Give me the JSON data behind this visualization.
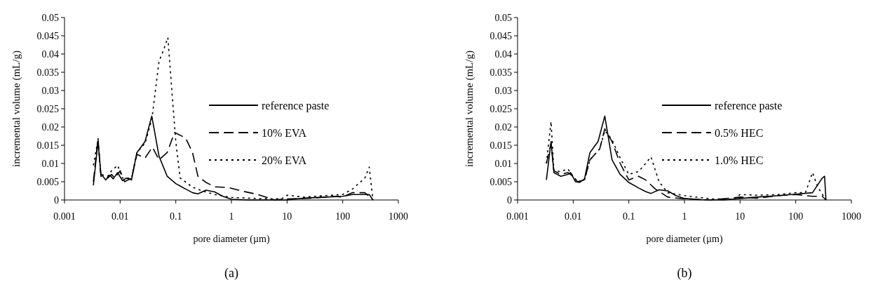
{
  "chart_data": [
    {
      "type": "line",
      "xlabel": "pore diameter (µm)",
      "ylabel": "incremental volume (mL/g)",
      "log": "x",
      "xlim": [
        0.001,
        1000
      ],
      "xticks": [
        0.001,
        0.01,
        0.1,
        1,
        10,
        100,
        1000
      ],
      "ylim": [
        0,
        0.05
      ],
      "yticks": [
        0,
        0.005,
        0.01,
        0.015,
        0.02,
        0.025,
        0.03,
        0.035,
        0.04,
        0.045,
        0.05
      ],
      "grid": false,
      "legend": "right",
      "annotations": [
        "(a)"
      ],
      "series": [
        {
          "name": "reference paste",
          "color": "#000000",
          "line_style": "solid",
          "x": [
            0.0033,
            0.004,
            0.0045,
            0.0055,
            0.0065,
            0.0075,
            0.009,
            0.011,
            0.013,
            0.016,
            0.02,
            0.028,
            0.037,
            0.05,
            0.07,
            0.1,
            0.15,
            0.2,
            0.25,
            0.35,
            0.5,
            0.7,
            1,
            2,
            10,
            20,
            50,
            100,
            150,
            200,
            300,
            350
          ],
          "values": [
            0.004,
            0.016,
            0.0072,
            0.0055,
            0.0068,
            0.0058,
            0.0075,
            0.0053,
            0.006,
            0.0055,
            0.013,
            0.016,
            0.023,
            0.012,
            0.0065,
            0.0045,
            0.003,
            0.002,
            0.0017,
            0.0027,
            0.0022,
            0.001,
            0.0002,
            0,
            0,
            0.0005,
            0.0008,
            0.001,
            0.0015,
            0.0015,
            0.0015,
            0
          ]
        },
        {
          "name": "10% EVA",
          "color": "#000000",
          "line_style": "dashed",
          "x": [
            0.0033,
            0.004,
            0.0045,
            0.006,
            0.007,
            0.008,
            0.01,
            0.012,
            0.016,
            0.02,
            0.028,
            0.038,
            0.05,
            0.07,
            0.095,
            0.15,
            0.2,
            0.25,
            0.35,
            0.5,
            0.9,
            1.5,
            3,
            6,
            10,
            30,
            70,
            100,
            150,
            250,
            350
          ],
          "values": [
            0.005,
            0.017,
            0.0065,
            0.006,
            0.007,
            0.006,
            0.008,
            0.005,
            0.006,
            0.0125,
            0.0115,
            0.0145,
            0.011,
            0.013,
            0.0185,
            0.017,
            0.013,
            0.0065,
            0.0048,
            0.0036,
            0.0034,
            0.0025,
            0.0015,
            0,
            0.0003,
            0.0005,
            0.001,
            0.0008,
            0.002,
            0.002,
            0
          ]
        },
        {
          "name": "20% EVA",
          "color": "#000000",
          "line_style": "dotted",
          "x": [
            0.0033,
            0.004,
            0.0045,
            0.006,
            0.007,
            0.009,
            0.011,
            0.016,
            0.02,
            0.028,
            0.037,
            0.05,
            0.06,
            0.072,
            0.085,
            0.1,
            0.12,
            0.2,
            0.3,
            0.5,
            1,
            3,
            8,
            10,
            20,
            50,
            100,
            150,
            250,
            300,
            350
          ],
          "values": [
            0.0095,
            0.0165,
            0.007,
            0.0065,
            0.008,
            0.0095,
            0.006,
            0.006,
            0.013,
            0.0155,
            0.022,
            0.038,
            0.041,
            0.0445,
            0.03,
            0.016,
            0.006,
            0.0035,
            0.0025,
            0.0015,
            0.0007,
            0.0004,
            0.0003,
            0.0013,
            0.0008,
            0.0012,
            0.0015,
            0.003,
            0.006,
            0.009,
            0
          ]
        }
      ]
    },
    {
      "type": "line",
      "xlabel": "pore diameter (µm)",
      "ylabel": "incremental volume (mL/g)",
      "log": "x",
      "xlim": [
        0.001,
        1000
      ],
      "xticks": [
        0.001,
        0.01,
        0.1,
        1,
        10,
        100,
        1000
      ],
      "ylim": [
        0,
        0.05
      ],
      "yticks": [
        0,
        0.005,
        0.01,
        0.015,
        0.02,
        0.025,
        0.03,
        0.035,
        0.04,
        0.045,
        0.05
      ],
      "grid": false,
      "legend": "right",
      "annotations": [
        "(b)"
      ],
      "series": [
        {
          "name": "reference paste",
          "color": "#000000",
          "line_style": "solid",
          "x": [
            0.0033,
            0.004,
            0.0045,
            0.006,
            0.008,
            0.009,
            0.011,
            0.013,
            0.016,
            0.02,
            0.028,
            0.037,
            0.05,
            0.07,
            0.1,
            0.15,
            0.2,
            0.25,
            0.35,
            0.5,
            0.7,
            1,
            2,
            5,
            10,
            20,
            50,
            100,
            200,
            300,
            330,
            350
          ],
          "values": [
            0.0055,
            0.016,
            0.0075,
            0.0065,
            0.007,
            0.0075,
            0.005,
            0.0048,
            0.0058,
            0.013,
            0.016,
            0.023,
            0.011,
            0.007,
            0.0048,
            0.0033,
            0.0023,
            0.0018,
            0.0028,
            0.0025,
            0.0012,
            0.0004,
            0.0001,
            0,
            0.0004,
            0.0008,
            0.0012,
            0.0016,
            0.002,
            0.006,
            0.0065,
            0
          ]
        },
        {
          "name": "0.5% HEC",
          "color": "#000000",
          "line_style": "dashed",
          "x": [
            0.0033,
            0.004,
            0.0045,
            0.006,
            0.008,
            0.01,
            0.012,
            0.016,
            0.02,
            0.03,
            0.037,
            0.05,
            0.07,
            0.1,
            0.15,
            0.2,
            0.3,
            0.5,
            1,
            3,
            10,
            20,
            50,
            100,
            200,
            300,
            350
          ],
          "values": [
            0.01,
            0.0155,
            0.008,
            0.007,
            0.0075,
            0.0065,
            0.005,
            0.0055,
            0.011,
            0.014,
            0.0195,
            0.016,
            0.01,
            0.0055,
            0.0065,
            0.0055,
            0.003,
            0.0008,
            0.0003,
            0,
            0.0008,
            0.0005,
            0.0012,
            0.0015,
            0.001,
            0.001,
            0
          ]
        },
        {
          "name": "1.0% HEC",
          "color": "#000000",
          "line_style": "dotted",
          "x": [
            0.0033,
            0.004,
            0.0045,
            0.006,
            0.008,
            0.01,
            0.012,
            0.016,
            0.02,
            0.03,
            0.037,
            0.05,
            0.07,
            0.1,
            0.15,
            0.2,
            0.25,
            0.35,
            0.5,
            1,
            3,
            8,
            10,
            20,
            50,
            100,
            150,
            200,
            250,
            350
          ],
          "values": [
            0.01,
            0.0215,
            0.008,
            0.0078,
            0.0085,
            0.0065,
            0.005,
            0.0055,
            0.011,
            0.014,
            0.019,
            0.0165,
            0.0115,
            0.007,
            0.0078,
            0.01,
            0.0118,
            0.005,
            0.002,
            0.0012,
            0.0003,
            0.0002,
            0.0015,
            0.0013,
            0.0015,
            0.002,
            0.002,
            0.0075,
            0.0035,
            0
          ]
        }
      ]
    }
  ]
}
